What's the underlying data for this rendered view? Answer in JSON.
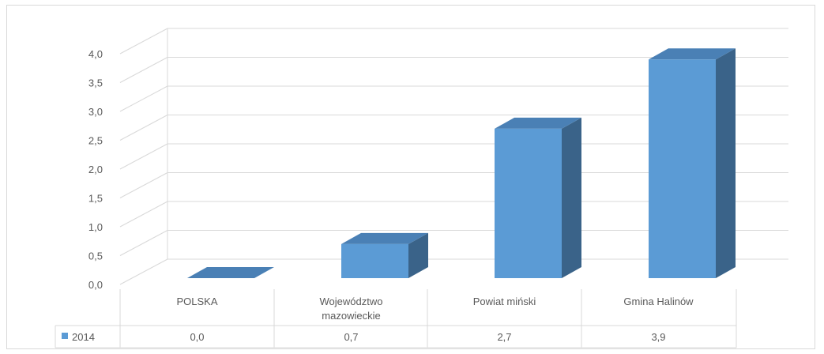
{
  "chart_data": {
    "type": "bar",
    "categories": [
      "POLSKA",
      "Województwo mazowieckie",
      "Powiat miński",
      "Gmina Halinów"
    ],
    "category_lines": [
      [
        "POLSKA"
      ],
      [
        "Województwo",
        "mazowieckie"
      ],
      [
        "Powiat miński"
      ],
      [
        "Gmina Halinów"
      ]
    ],
    "series": [
      {
        "name": "2014",
        "values": [
          0.0,
          0.7,
          2.7,
          3.9
        ],
        "value_labels": [
          "0,0",
          "0,7",
          "2,7",
          "3,9"
        ]
      }
    ],
    "y_ticks": [
      "0,0",
      "0,5",
      "1,0",
      "1,5",
      "2,0",
      "2,5",
      "3,0",
      "3,5",
      "4,0"
    ],
    "ylim": [
      0,
      4
    ],
    "grid": true,
    "legend_position": "data-table",
    "style": "3d-column",
    "colors": {
      "front": "#5b9bd5",
      "top": "#4a80b5",
      "side": "#3a6389",
      "grid": "#d9d9d9",
      "text": "#595959"
    }
  }
}
